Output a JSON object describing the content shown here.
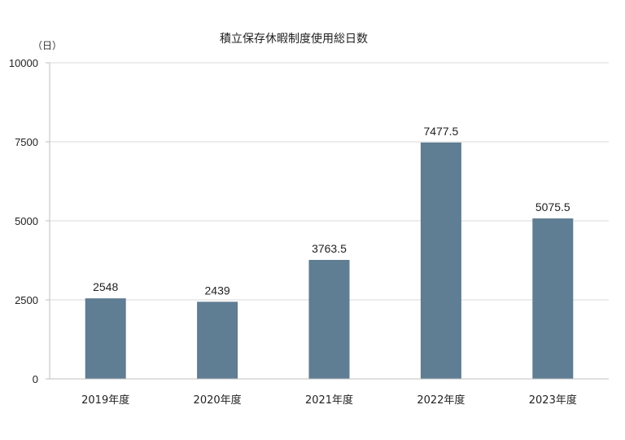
{
  "chart_data": {
    "type": "bar",
    "title": "積立保存休暇制度使用総日数",
    "ylabel": "（日）",
    "xlabel": "",
    "categories": [
      "2019年度",
      "2020年度",
      "2021年度",
      "2022年度",
      "2023年度"
    ],
    "values": [
      2548,
      2439,
      3763.5,
      7477.5,
      5075.5
    ],
    "data_labels": [
      "2548",
      "2439",
      "3763.5",
      "7477.5",
      "5075.5"
    ],
    "ylim": [
      0,
      10000
    ],
    "yticks": [
      0,
      2500,
      5000,
      7500,
      10000
    ],
    "ytick_labels": [
      "0",
      "2500",
      "5000",
      "7500",
      "10000"
    ],
    "grid": true,
    "legend": "none",
    "bar_color": "#5f7d93",
    "grid_color": "#d9d9d9",
    "axis_color": "#bfbfbf"
  }
}
